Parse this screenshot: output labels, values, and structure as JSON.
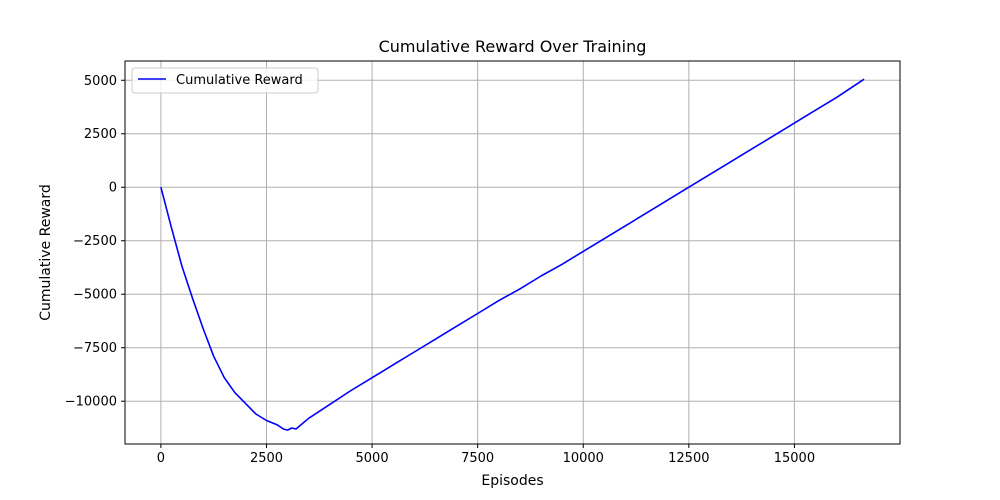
{
  "chart_data": {
    "type": "line",
    "title": "Cumulative Reward Over Training",
    "xlabel": "Episodes",
    "ylabel": "Cumulative Reward",
    "xlim": [
      -850,
      17500
    ],
    "ylim": [
      -12000,
      5900
    ],
    "grid": true,
    "legend_position": "top-left",
    "xticks": [
      0,
      2500,
      5000,
      7500,
      10000,
      12500,
      15000
    ],
    "xtick_labels": [
      "0",
      "2500",
      "5000",
      "7500",
      "10000",
      "12500",
      "15000"
    ],
    "yticks": [
      5000,
      2500,
      0,
      -2500,
      -5000,
      -7500,
      -10000
    ],
    "ytick_labels": [
      "5000",
      "2500",
      "0",
      "−2500",
      "−5000",
      "−7500",
      "−10000"
    ],
    "series": [
      {
        "name": "Cumulative Reward",
        "color": "#0000ff",
        "x": [
          0,
          250,
          500,
          750,
          1000,
          1250,
          1500,
          1750,
          2000,
          2250,
          2500,
          2750,
          2900,
          3000,
          3100,
          3200,
          3500,
          4000,
          4500,
          5000,
          5500,
          6000,
          6500,
          7000,
          7500,
          8000,
          8500,
          9000,
          9500,
          10000,
          10500,
          11000,
          11500,
          12000,
          12500,
          13000,
          13500,
          14000,
          14500,
          15000,
          15500,
          16000,
          16650
        ],
        "y": [
          0,
          -1900,
          -3700,
          -5200,
          -6600,
          -7900,
          -8900,
          -9600,
          -10100,
          -10600,
          -10900,
          -11100,
          -11300,
          -11350,
          -11250,
          -11300,
          -10800,
          -10150,
          -9500,
          -8900,
          -8300,
          -7700,
          -7100,
          -6500,
          -5900,
          -5300,
          -4750,
          -4150,
          -3600,
          -3000,
          -2400,
          -1800,
          -1200,
          -600,
          0,
          600,
          1200,
          1800,
          2400,
          3000,
          3600,
          4200,
          5050
        ]
      }
    ]
  }
}
